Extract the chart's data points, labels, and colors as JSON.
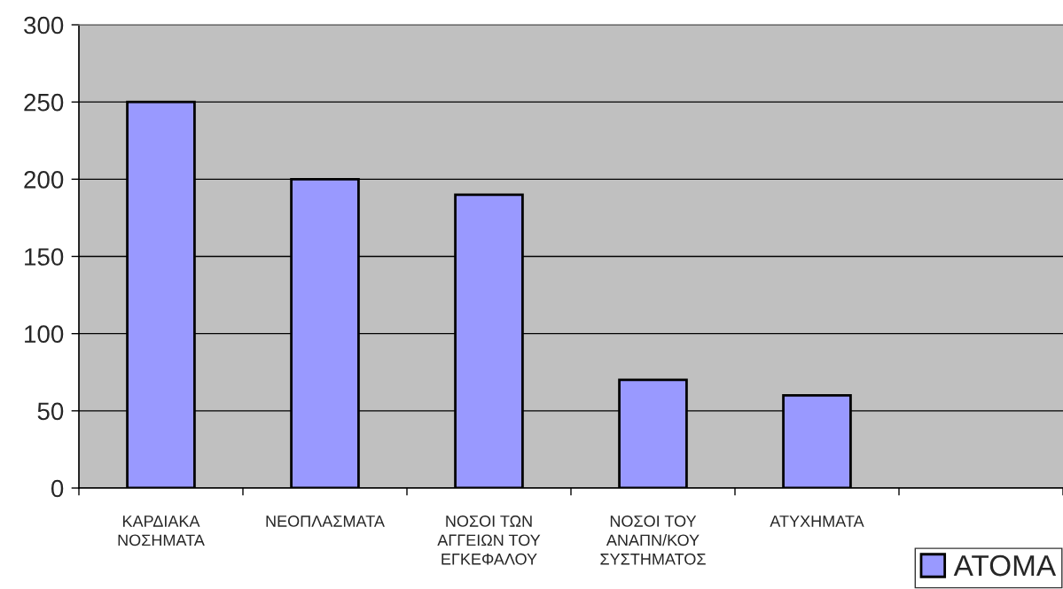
{
  "chart_data": {
    "type": "bar",
    "categories": [
      "ΚΑΡΔΙΑΚΑ\nΝΟΣΗΜΑΤΑ",
      "ΝΕΟΠΛΑΣΜΑΤΑ",
      "ΝΟΣΟΙ ΤΩΝ\nΑΓΓΕΙΩΝ ΤΟΥ\nΕΓΚΕΦΑΛΟΥ",
      "ΝΟΣΟΙ ΤΟΥ\nΑΝΑΠΝ/ΚΟΥ\nΣΥΣΤΗΜΑΤΟΣ",
      "ΑΤΥΧΗΜΑΤΑ",
      null
    ],
    "series": [
      {
        "name": "ΑΤΟΜΑ",
        "color": "#9999ff",
        "values": [
          250,
          200,
          190,
          70,
          60,
          null
        ]
      }
    ],
    "ylim": [
      0,
      300
    ],
    "yticks": [
      0,
      50,
      100,
      150,
      200,
      250,
      300
    ],
    "grid": "y",
    "legend": "bottom right"
  }
}
